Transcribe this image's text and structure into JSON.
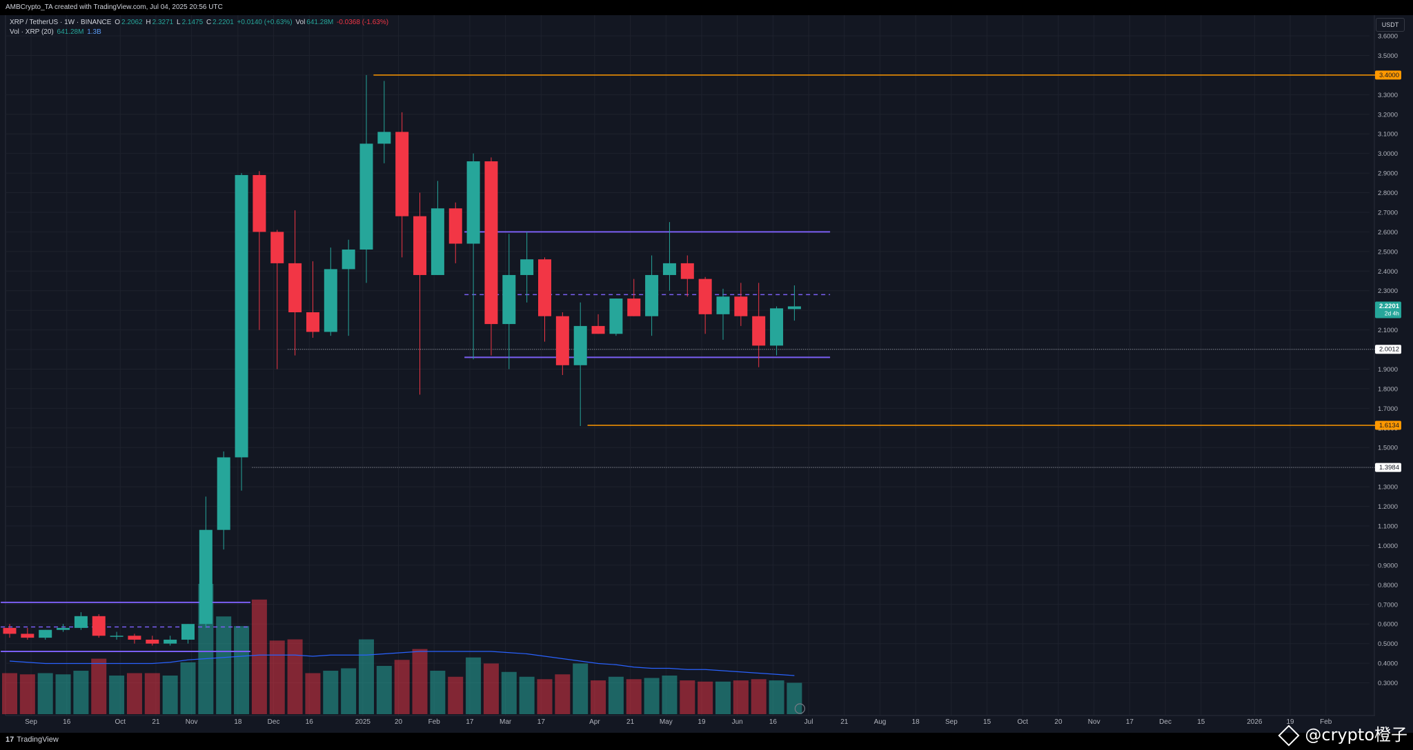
{
  "header": {
    "credit": "AMBCrypto_TA created with TradingView.com, Jul 04, 2025 20:56 UTC"
  },
  "legend": {
    "symbol": "XRP / TetherUS · 1W · BINANCE",
    "open_label": "O",
    "open": "2.2062",
    "high_label": "H",
    "high": "2.3271",
    "low_label": "L",
    "low": "2.1475",
    "close_label": "C",
    "close": "2.2201",
    "change": "+0.0140 (+0.63%)",
    "vol_label": "Vol",
    "vol": "641.28M",
    "vol_change": "-0.0368 (-1.63%)",
    "vol_indicator": "Vol · XRP (20)",
    "vol_value": "641.28M",
    "vol_ma": "1.3B"
  },
  "currency": "USDT",
  "footer": {
    "logo_mark": "17",
    "logo_text": "TradingView",
    "watermark": "@crypto橙子"
  },
  "chart_data": {
    "type": "candlestick",
    "ylim": [
      0.2,
      3.7
    ],
    "y_ticks": [
      "3.6000",
      "3.5000",
      "3.4000",
      "3.3000",
      "3.2000",
      "3.1000",
      "3.0000",
      "2.9000",
      "2.8000",
      "2.7000",
      "2.6000",
      "2.5000",
      "2.4000",
      "2.3000",
      "2.2000",
      "2.1000",
      "2.0000",
      "1.9000",
      "1.8000",
      "1.7000",
      "1.6000",
      "1.5000",
      "1.4000",
      "1.3000",
      "1.2000",
      "1.1000",
      "1.0000",
      "0.9000",
      "0.8000",
      "0.7000",
      "0.6000",
      "0.5000",
      "0.4000",
      "0.3000"
    ],
    "x_ticks": [
      {
        "label": "Sep",
        "week": 1.2
      },
      {
        "label": "16",
        "week": 3.2
      },
      {
        "label": "Oct",
        "week": 6.2
      },
      {
        "label": "21",
        "week": 8.2
      },
      {
        "label": "Nov",
        "week": 10.2
      },
      {
        "label": "18",
        "week": 12.8
      },
      {
        "label": "Dec",
        "week": 14.8
      },
      {
        "label": "16",
        "week": 16.8
      },
      {
        "label": "2025",
        "week": 19.8
      },
      {
        "label": "20",
        "week": 21.8
      },
      {
        "label": "Feb",
        "week": 23.8
      },
      {
        "label": "17",
        "week": 25.8
      },
      {
        "label": "Mar",
        "week": 27.8
      },
      {
        "label": "17",
        "week": 29.8
      },
      {
        "label": "Apr",
        "week": 32.8
      },
      {
        "label": "21",
        "week": 34.8
      },
      {
        "label": "May",
        "week": 36.8
      },
      {
        "label": "19",
        "week": 38.8
      },
      {
        "label": "Jun",
        "week": 40.8
      },
      {
        "label": "16",
        "week": 42.8
      },
      {
        "label": "Jul",
        "week": 44.8
      },
      {
        "label": "21",
        "week": 46.8
      },
      {
        "label": "Aug",
        "week": 48.8
      },
      {
        "label": "18",
        "week": 50.8
      },
      {
        "label": "Sep",
        "week": 52.8
      },
      {
        "label": "15",
        "week": 54.8
      },
      {
        "label": "Oct",
        "week": 56.8
      },
      {
        "label": "20",
        "week": 58.8
      },
      {
        "label": "Nov",
        "week": 60.8
      },
      {
        "label": "17",
        "week": 62.8
      },
      {
        "label": "Dec",
        "week": 64.8
      },
      {
        "label": "15",
        "week": 66.8
      },
      {
        "label": "2026",
        "week": 69.8
      },
      {
        "label": "19",
        "week": 71.8
      },
      {
        "label": "Feb",
        "week": 73.8
      }
    ],
    "candles": [
      {
        "o": 0.58,
        "h": 0.6,
        "l": 0.53,
        "c": 0.55,
        "v": 0.34
      },
      {
        "o": 0.55,
        "h": 0.58,
        "l": 0.52,
        "c": 0.53,
        "v": 0.33
      },
      {
        "o": 0.53,
        "h": 0.57,
        "l": 0.52,
        "c": 0.57,
        "v": 0.34
      },
      {
        "o": 0.57,
        "h": 0.6,
        "l": 0.56,
        "c": 0.58,
        "v": 0.33
      },
      {
        "o": 0.58,
        "h": 0.66,
        "l": 0.57,
        "c": 0.64,
        "v": 0.36
      },
      {
        "o": 0.64,
        "h": 0.65,
        "l": 0.53,
        "c": 0.54,
        "v": 0.46
      },
      {
        "o": 0.54,
        "h": 0.56,
        "l": 0.52,
        "c": 0.54,
        "v": 0.32
      },
      {
        "o": 0.54,
        "h": 0.55,
        "l": 0.5,
        "c": 0.52,
        "v": 0.34
      },
      {
        "o": 0.52,
        "h": 0.54,
        "l": 0.49,
        "c": 0.5,
        "v": 0.34
      },
      {
        "o": 0.5,
        "h": 0.54,
        "l": 0.49,
        "c": 0.52,
        "v": 0.32
      },
      {
        "o": 0.52,
        "h": 0.6,
        "l": 0.5,
        "c": 0.6,
        "v": 0.43
      },
      {
        "o": 0.6,
        "h": 1.25,
        "l": 0.58,
        "c": 1.08,
        "v": 1.08
      },
      {
        "o": 1.08,
        "h": 1.48,
        "l": 0.98,
        "c": 1.45,
        "v": 0.81
      },
      {
        "o": 1.45,
        "h": 2.9,
        "l": 1.28,
        "c": 2.89,
        "v": 0.73
      },
      {
        "o": 2.89,
        "h": 2.91,
        "l": 2.1,
        "c": 2.6,
        "v": 0.95
      },
      {
        "o": 2.6,
        "h": 2.61,
        "l": 1.9,
        "c": 2.44,
        "v": 0.61
      },
      {
        "o": 2.44,
        "h": 2.71,
        "l": 1.97,
        "c": 2.19,
        "v": 0.62
      },
      {
        "o": 2.19,
        "h": 2.45,
        "l": 2.06,
        "c": 2.09,
        "v": 0.34
      },
      {
        "o": 2.09,
        "h": 2.52,
        "l": 2.07,
        "c": 2.41,
        "v": 0.36
      },
      {
        "o": 2.41,
        "h": 2.56,
        "l": 2.07,
        "c": 2.51,
        "v": 0.38
      },
      {
        "o": 2.51,
        "h": 3.4,
        "l": 2.34,
        "c": 3.05,
        "v": 0.62
      },
      {
        "o": 3.05,
        "h": 3.37,
        "l": 2.95,
        "c": 3.11,
        "v": 0.4
      },
      {
        "o": 3.11,
        "h": 3.21,
        "l": 2.47,
        "c": 2.68,
        "v": 0.45
      },
      {
        "o": 2.68,
        "h": 2.8,
        "l": 1.77,
        "c": 2.38,
        "v": 0.54
      },
      {
        "o": 2.38,
        "h": 2.86,
        "l": 2.38,
        "c": 2.72,
        "v": 0.36
      },
      {
        "o": 2.72,
        "h": 2.75,
        "l": 2.44,
        "c": 2.54,
        "v": 0.31
      },
      {
        "o": 2.54,
        "h": 3.0,
        "l": 1.95,
        "c": 2.96,
        "v": 0.47
      },
      {
        "o": 2.96,
        "h": 2.98,
        "l": 1.97,
        "c": 2.13,
        "v": 0.42
      },
      {
        "o": 2.13,
        "h": 2.59,
        "l": 1.9,
        "c": 2.38,
        "v": 0.35
      },
      {
        "o": 2.38,
        "h": 2.6,
        "l": 2.24,
        "c": 2.46,
        "v": 0.31
      },
      {
        "o": 2.46,
        "h": 2.47,
        "l": 2.04,
        "c": 2.17,
        "v": 0.29
      },
      {
        "o": 2.17,
        "h": 2.19,
        "l": 1.87,
        "c": 1.92,
        "v": 0.33
      },
      {
        "o": 1.92,
        "h": 2.24,
        "l": 1.61,
        "c": 2.12,
        "v": 0.42
      },
      {
        "o": 2.12,
        "h": 2.18,
        "l": 2.08,
        "c": 2.08,
        "v": 0.28
      },
      {
        "o": 2.08,
        "h": 2.26,
        "l": 2.07,
        "c": 2.26,
        "v": 0.31
      },
      {
        "o": 2.26,
        "h": 2.36,
        "l": 2.17,
        "c": 2.17,
        "v": 0.29
      },
      {
        "o": 2.17,
        "h": 2.48,
        "l": 2.07,
        "c": 2.38,
        "v": 0.3
      },
      {
        "o": 2.38,
        "h": 2.65,
        "l": 2.3,
        "c": 2.44,
        "v": 0.32
      },
      {
        "o": 2.44,
        "h": 2.48,
        "l": 2.27,
        "c": 2.36,
        "v": 0.28
      },
      {
        "o": 2.36,
        "h": 2.37,
        "l": 2.08,
        "c": 2.18,
        "v": 0.27
      },
      {
        "o": 2.18,
        "h": 2.31,
        "l": 2.05,
        "c": 2.27,
        "v": 0.27
      },
      {
        "o": 2.27,
        "h": 2.34,
        "l": 2.12,
        "c": 2.17,
        "v": 0.28
      },
      {
        "o": 2.17,
        "h": 2.34,
        "l": 1.91,
        "c": 2.02,
        "v": 0.29
      },
      {
        "o": 2.02,
        "h": 2.22,
        "l": 1.97,
        "c": 2.21,
        "v": 0.28
      },
      {
        "o": 2.2062,
        "h": 2.3271,
        "l": 2.1475,
        "c": 2.2201,
        "v": 0.26
      }
    ],
    "vol_ma": [
      0.44,
      0.43,
      0.42,
      0.42,
      0.42,
      0.42,
      0.42,
      0.42,
      0.42,
      0.43,
      0.45,
      0.46,
      0.47,
      0.48,
      0.49,
      0.49,
      0.49,
      0.48,
      0.49,
      0.49,
      0.49,
      0.5,
      0.51,
      0.52,
      0.52,
      0.52,
      0.52,
      0.52,
      0.51,
      0.5,
      0.48,
      0.46,
      0.44,
      0.42,
      0.41,
      0.39,
      0.38,
      0.38,
      0.37,
      0.37,
      0.36,
      0.35,
      0.34,
      0.33,
      0.32
    ],
    "levels": [
      {
        "price": 3.4,
        "label": "3.4000",
        "color": "#ff9800",
        "from_week": 20.4
      },
      {
        "price": 1.6134,
        "label": "1.6134",
        "color": "#ff9800",
        "from_week": 32.4
      },
      {
        "price": 2.0012,
        "label": "2.0012",
        "color": "#b2b5be",
        "from_week": 15.6,
        "dotted": true
      },
      {
        "price": 1.3984,
        "label": "1.3984",
        "color": "#b2b5be",
        "from_week": 13.6,
        "dotted": true
      },
      {
        "price": 2.2201,
        "label": "2.2201",
        "sublabel": "2d 4h",
        "color": "#26a69a",
        "is_price": true
      }
    ],
    "ranges": [
      {
        "top": 2.6,
        "bottom": 1.96,
        "mid": 2.28,
        "from_week": 25.5,
        "to_week": 46.0,
        "color": "#7b5ff5"
      },
      {
        "top": 0.71,
        "bottom": 0.46,
        "mid": 0.585,
        "from_week": -0.5,
        "to_week": 13.5,
        "color": "#7b5ff5"
      }
    ]
  }
}
